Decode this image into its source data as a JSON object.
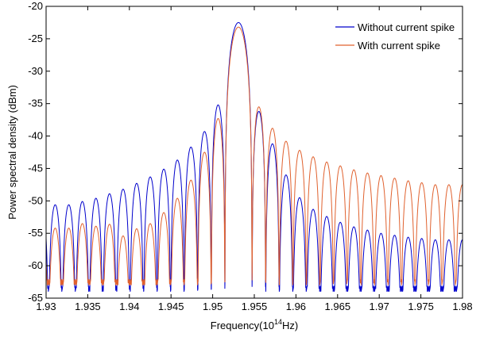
{
  "chart_data": {
    "type": "line",
    "xlabel": "Frequency(10",
    "xlabel_sup": "14",
    "xlabel_suffix": "Hz)",
    "ylabel": "Power spectral density (dBm)",
    "xlim": [
      1.93,
      1.98
    ],
    "ylim": [
      -65,
      -20
    ],
    "x_ticks": [
      1.93,
      1.935,
      1.94,
      1.945,
      1.95,
      1.955,
      1.96,
      1.965,
      1.97,
      1.975,
      1.98
    ],
    "x_tick_labels": [
      "1.93",
      "1.935",
      "1.94",
      "1.945",
      "1.95",
      "1.955",
      "1.96",
      "1.965",
      "1.97",
      "1.975",
      "1.98"
    ],
    "y_ticks": [
      -20,
      -25,
      -30,
      -35,
      -40,
      -45,
      -50,
      -55,
      -60,
      -65
    ],
    "y_tick_labels": [
      "-20",
      "-25",
      "-30",
      "-35",
      "-40",
      "-45",
      "-50",
      "-55",
      "-60",
      "-65"
    ],
    "grid": false,
    "legend_position": "top-right",
    "series": [
      {
        "name": "Without current spike",
        "color": "#0000cc",
        "peak_x": 1.9531,
        "peak_y": -22.5,
        "lobe_spacing": 0.00163,
        "lobe_peaks_left": [
          -35.2,
          -39.3,
          -41.7,
          -43.7,
          -45.1,
          -46.3,
          -47.3,
          -48.2,
          -48.9,
          -49.6,
          -50.1,
          -50.6
        ],
        "lobe_peaks_right": [
          -36.2,
          -41.2,
          -46.0,
          -49.5,
          -51.3,
          -52.4,
          -53.3,
          -54.0,
          -54.5,
          -55.0,
          -55.3,
          -55.6,
          -55.8,
          -56.0
        ],
        "null_level": -62
      },
      {
        "name": "With current spike",
        "color": "#e0612e",
        "peak_x": 1.9531,
        "peak_y": -23.2,
        "lobe_spacing": 0.00163,
        "lobe_peaks_left": [
          -37.3,
          -42.5,
          -46.8,
          -49.6,
          -51.8,
          -53.5,
          -54.3,
          -55.4,
          -53.6,
          -53.9,
          -53.5,
          -54.2
        ],
        "lobe_peaks_right": [
          -35.5,
          -38.8,
          -40.8,
          -42.2,
          -43.2,
          -44.0,
          -44.6,
          -45.2,
          -45.7,
          -46.1,
          -46.5,
          -46.9,
          -47.2,
          -47.5
        ],
        "null_level": -61
      }
    ]
  }
}
